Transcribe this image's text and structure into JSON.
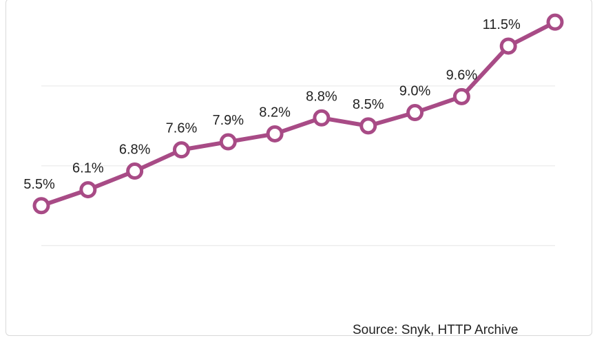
{
  "chart_data": {
    "type": "line",
    "x": [
      "1",
      "2",
      "3",
      "4",
      "5",
      "6",
      "7",
      "8",
      "9",
      "10",
      "11",
      "12"
    ],
    "series": [
      {
        "values": [
          5.5,
          6.1,
          6.8,
          7.6,
          7.9,
          8.2,
          8.8,
          8.5,
          9.0,
          9.6,
          11.5,
          12.4
        ]
      }
    ],
    "data_labels": [
      "5.5%",
      "6.1%",
      "6.8%",
      "7.6%",
      "7.9%",
      "8.2%",
      "8.8%",
      "8.5%",
      "9.0%",
      "9.6%",
      "11.5%",
      ""
    ],
    "ylim": [
      2.0,
      13.0
    ],
    "gridlines": [
      4.0,
      7.0,
      10.0
    ],
    "grid": true,
    "line_color": "#a84b86",
    "title": "",
    "xlabel": "",
    "ylabel": ""
  },
  "footer": {
    "source": "Source: Snyk, HTTP Archive"
  }
}
